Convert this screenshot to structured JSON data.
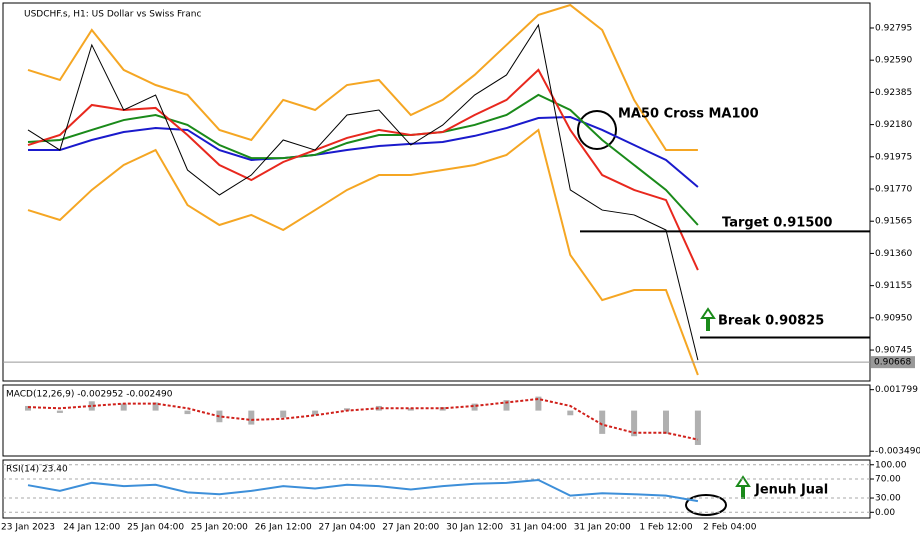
{
  "header": {
    "title": "USDCHF.s, H1:  US Dollar vs Swiss Franc"
  },
  "chart_data": [
    {
      "type": "line",
      "ylim": [
        0.90548,
        0.92954
      ],
      "yticks": [
        0.92795,
        {
          "value": 0.9259,
          "label": "0.92590"
        },
        0.92385,
        {
          "value": 0.9218,
          "label": "0.92180"
        },
        0.91975,
        {
          "value": 0.9177,
          "label": "0.91770"
        },
        0.91565,
        {
          "value": 0.9136,
          "label": "0.91360"
        },
        0.91155,
        {
          "value": 0.9095,
          "label": "0.90950"
        },
        0.90745
      ],
      "series": [
        {
          "color": "#f5a623",
          "values": [
            0.92528,
            0.92464,
            0.92782,
            0.92528,
            0.92432,
            0.92369,
            0.92146,
            0.92082,
            0.92337,
            0.92273,
            0.92432,
            0.92464,
            0.92241,
            0.92337,
            0.92496,
            0.92687,
            0.92878,
            0.92941,
            0.92782,
            0.92337,
            0.92018,
            0.92018,
            null
          ]
        },
        {
          "color": "#f5a623",
          "values": [
            0.91636,
            0.91573,
            0.91764,
            0.91923,
            0.92018,
            0.91668,
            0.91541,
            0.91605,
            0.91509,
            0.91636,
            0.91764,
            0.91859,
            0.91859,
            0.91891,
            0.91923,
            0.91987,
            0.92146,
            0.9135,
            0.91063,
            0.91127,
            0.91127,
            0.90586,
            null
          ]
        },
        {
          "color": "#1a1acc",
          "values": [
            0.92018,
            0.92018,
            0.92082,
            0.92133,
            0.92158,
            0.92146,
            0.92018,
            0.91955,
            0.91967,
            0.91987,
            0.92018,
            0.92044,
            0.92057,
            0.92069,
            0.92108,
            0.92158,
            0.92222,
            0.92228,
            0.92146,
            0.9205,
            0.91955,
            0.91783,
            null
          ]
        },
        {
          "color": "#1a8a1a",
          "values": [
            0.92069,
            0.92082,
            0.92146,
            0.92209,
            0.92241,
            0.92178,
            0.9205,
            0.91967,
            0.91967,
            0.91987,
            0.92063,
            0.92114,
            0.92114,
            0.92133,
            0.92178,
            0.92241,
            0.92369,
            0.92273,
            0.92082,
            0.91923,
            0.91764,
            0.91541,
            null
          ]
        },
        {
          "color": "#e8281e",
          "values": [
            0.9205,
            0.92114,
            0.92305,
            0.92273,
            0.92286,
            0.92114,
            0.91923,
            0.91827,
            0.91942,
            0.92018,
            0.92095,
            0.92146,
            0.92114,
            0.92133,
            0.92241,
            0.92337,
            0.92528,
            0.92146,
            0.91859,
            0.91764,
            0.917,
            0.91254,
            null
          ]
        },
        {
          "color": "#000000",
          "values": [
            0.92146,
            0.92018,
            0.92687,
            0.92273,
            0.92368,
            0.91891,
            0.91732,
            0.91859,
            0.92082,
            0.92018,
            0.92241,
            0.92273,
            0.9205,
            0.92177,
            0.92368,
            0.92496,
            0.92814,
            0.91764,
            0.91636,
            0.91605,
            0.91509,
            0.90681,
            null
          ]
        }
      ],
      "hlines": [
        0.915,
        0.90825
      ],
      "last_price": 0.90668,
      "annotations": [
        "MA50 Cross MA100",
        "Target 0.91500",
        "Break 0.90825"
      ]
    },
    {
      "type": "bar",
      "title": "MACD(12,26,9) -0.002952 -0.002490",
      "ylim": [
        -0.0039,
        0.0022
      ],
      "yticks": [
        0.001799,
        {
          "value": -0.00349,
          "label": "-0.003490"
        }
      ],
      "series": [
        {
          "kind": "bar",
          "color": "#b0b0b0",
          "values": [
            0.0004,
            -0.0002,
            0.0008,
            0.0006,
            0.0007,
            -0.0003,
            -0.001,
            -0.0012,
            -0.0006,
            -0.0004,
            0.0002,
            0.0004,
            0.0002,
            0.0003,
            0.0006,
            0.0009,
            0.0012,
            -0.0004,
            -0.002,
            -0.0022,
            -0.002,
            -0.002952,
            null
          ]
        },
        {
          "kind": "line",
          "dash": true,
          "color": "#d0201a",
          "values": [
            0.0003,
            0.0002,
            0.0004,
            0.0006,
            0.0006,
            0.0002,
            -0.0005,
            -0.0008,
            -0.0007,
            -0.0004,
            0,
            0.0002,
            0.0002,
            0.0002,
            0.0004,
            0.0007,
            0.001,
            0.0004,
            -0.0012,
            -0.0019,
            -0.0019,
            -0.00249,
            null
          ]
        }
      ]
    },
    {
      "type": "line",
      "title": "RSI(14) 23.40",
      "ylim": [
        -12,
        110
      ],
      "yticks": [
        {
          "value": 100,
          "label": "100.00"
        },
        {
          "value": 70,
          "label": "70.00"
        },
        {
          "value": 30,
          "label": "30.00"
        },
        {
          "value": 0,
          "label": "0.00"
        }
      ],
      "grid": true,
      "series": [
        {
          "color": "#3d8fd9",
          "values": [
            57,
            45,
            62,
            55,
            58,
            42,
            38,
            45,
            55,
            50,
            58,
            55,
            48,
            55,
            60,
            62,
            68,
            35,
            40,
            38,
            35,
            23.4,
            null
          ]
        }
      ],
      "categories": [
        "23 Jan 2023",
        null,
        "24 Jan 12:00",
        null,
        "25 Jan 04:00",
        null,
        "25 Jan 20:00",
        null,
        "26 Jan 12:00",
        null,
        "27 Jan 04:00",
        null,
        "27 Jan 20:00",
        null,
        "30 Jan 12:00",
        null,
        "31 Jan 04:00",
        null,
        "31 Jan 20:00",
        null,
        "1 Feb 12:00",
        null,
        "2 Feb 04:00"
      ],
      "annotations": [
        "Jenuh Jual"
      ]
    }
  ]
}
